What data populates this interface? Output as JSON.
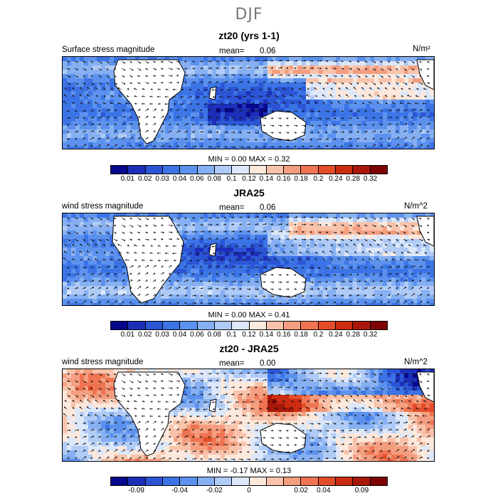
{
  "figure_title": "DJF",
  "colors": {
    "scale": [
      "#08088c",
      "#1c2fb8",
      "#2c55d6",
      "#3c74e6",
      "#5c92ee",
      "#86b0f2",
      "#b0cbf6",
      "#dce8fa",
      "#fde8dc",
      "#f9c3ab",
      "#f49e80",
      "#ee7452",
      "#e44d2a",
      "#cc2c12",
      "#a8180a",
      "#7e0404"
    ],
    "land": "#ffffff"
  },
  "colorbar_main": {
    "ticks": [
      "0.01",
      "0.02",
      "0.03",
      "0.04",
      "0.06",
      "0.08",
      "0.1",
      "0.12",
      "0.14",
      "0.16",
      "0.18",
      "0.2",
      "0.24",
      "0.28",
      "0.32"
    ]
  },
  "colorbar_diff": {
    "ticks": [
      "-0.09",
      "-0.04",
      "-0.02",
      "0",
      "0.02",
      "0.04",
      "0.09"
    ]
  },
  "panels": [
    {
      "title": "zt20 (yrs 1-1)",
      "label": "Surface stress magnitude",
      "mean_label": "mean=",
      "mean_value": "0.06",
      "units": "N/m²",
      "stats": "MIN =    0.00  MAX =    0.32",
      "field": "model-stress"
    },
    {
      "title": "JRA25",
      "label": "wind stress magnitude",
      "mean_label": "mean=",
      "mean_value": "0.06",
      "units": "N/m^2",
      "stats": "MIN =    0.00  MAX =    0.41",
      "field": "obs-stress"
    },
    {
      "title": "zt20 - JRA25",
      "label": "wind stress magnitude",
      "mean_label": "mean=",
      "mean_value": "0.00",
      "units": "N/m^2",
      "stats": "MIN =   -0.17  MAX =    0.13",
      "field": "difference"
    }
  ]
}
